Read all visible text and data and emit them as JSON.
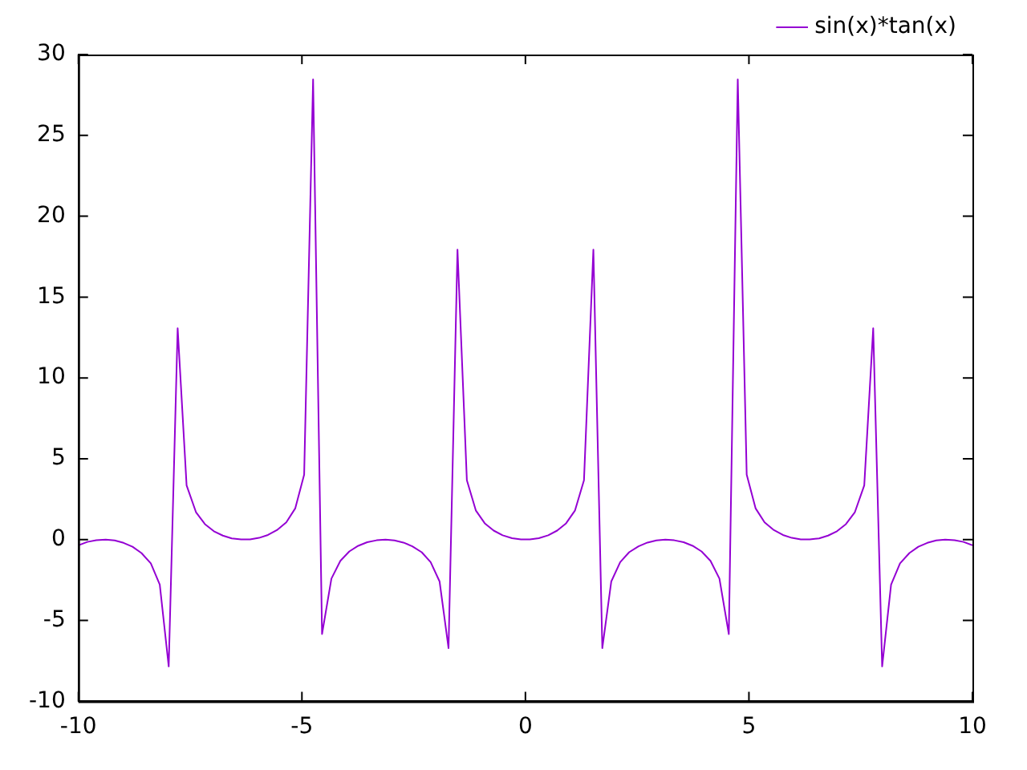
{
  "chart_data": {
    "type": "line",
    "xlim": [
      -10,
      10
    ],
    "xticks": [
      -10,
      -5,
      0,
      5,
      10
    ],
    "ylim": [
      -10,
      30
    ],
    "yticks": [
      -10,
      -5,
      0,
      5,
      10,
      15,
      20,
      25,
      30
    ],
    "legend": "top right",
    "marker": "none",
    "line_style": "solid",
    "x": [
      -10,
      -9.8,
      -9.6,
      -9.39,
      -9.19,
      -8.99,
      -8.79,
      -8.59,
      -8.38,
      -8.18,
      -7.98,
      -7.78,
      -7.58,
      -7.37,
      -7.17,
      -6.97,
      -6.77,
      -6.57,
      -6.36,
      -6.16,
      -5.96,
      -5.76,
      -5.56,
      -5.35,
      -5.15,
      -4.95,
      -4.75,
      -4.55,
      -4.34,
      -4.14,
      -3.94,
      -3.74,
      -3.54,
      -3.33,
      -3.13,
      -2.93,
      -2.73,
      -2.53,
      -2.32,
      -2.12,
      -1.92,
      -1.72,
      -1.52,
      -1.31,
      -1.11,
      -0.91,
      -0.71,
      -0.51,
      -0.3,
      -0.1,
      0.1,
      0.3,
      0.51,
      0.71,
      0.91,
      1.11,
      1.31,
      1.52,
      1.72,
      1.92,
      2.12,
      2.32,
      2.53,
      2.73,
      2.93,
      3.13,
      3.33,
      3.54,
      3.74,
      3.94,
      4.14,
      4.34,
      4.55,
      4.75,
      4.95,
      5.15,
      5.35,
      5.56,
      5.76,
      5.96,
      6.16,
      6.36,
      6.57,
      6.77,
      6.97,
      7.17,
      7.37,
      7.58,
      7.78,
      7.98,
      8.18,
      8.38,
      8.59,
      8.79,
      8.99,
      9.19,
      9.39,
      9.6,
      9.8,
      10
    ],
    "series": [
      {
        "name": "sin(x)*tan(x)",
        "color": "#9400d3",
        "values": [
          -0.35,
          -0.14,
          -0.03,
          0,
          -0.05,
          -0.2,
          -0.44,
          -0.83,
          -1.47,
          -2.78,
          -7.84,
          13.07,
          3.36,
          1.7,
          0.96,
          0.52,
          0.25,
          0.08,
          0.01,
          0.01,
          0.11,
          0.29,
          0.59,
          1.07,
          1.93,
          4.02,
          28.46,
          -5.84,
          -2.41,
          -1.31,
          -0.73,
          -0.38,
          -0.16,
          -0.04,
          0,
          -0.05,
          -0.18,
          -0.41,
          -0.78,
          -1.39,
          -2.59,
          -6.71,
          17.93,
          3.67,
          1.81,
          1.01,
          0.56,
          0.27,
          0.09,
          0.01,
          0.01,
          0.09,
          0.27,
          0.56,
          1.01,
          1.81,
          3.67,
          17.93,
          -6.71,
          -2.59,
          -1.39,
          -0.78,
          -0.41,
          -0.18,
          -0.05,
          0,
          -0.04,
          -0.16,
          -0.38,
          -0.73,
          -1.31,
          -2.41,
          -5.84,
          28.46,
          4.02,
          1.93,
          1.07,
          0.59,
          0.29,
          0.11,
          0.01,
          0.01,
          0.08,
          0.25,
          0.52,
          0.96,
          1.7,
          3.36,
          13.07,
          -7.84,
          -2.78,
          -1.47,
          -0.83,
          -0.44,
          -0.2,
          -0.05,
          0,
          -0.03,
          -0.14,
          -0.35
        ]
      }
    ]
  }
}
